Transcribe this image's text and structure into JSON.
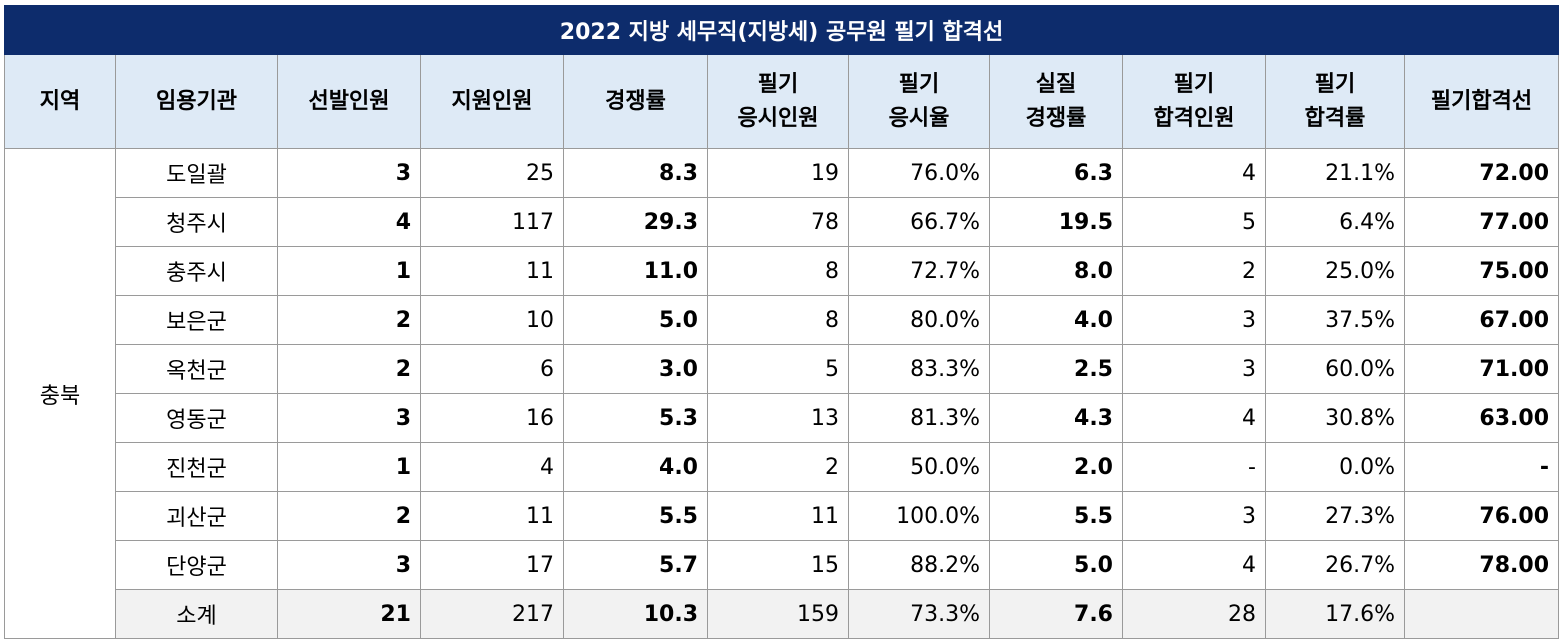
{
  "title": "2022 지방 세무직(지방세) 공무원 필기 합격선",
  "headers": [
    "지역",
    "임용기관",
    "선발인원",
    "지원인원",
    "경쟁률",
    "필기\n응시인원",
    "필기\n응시율",
    "실질\n경쟁률",
    "필기\n합격인원",
    "필기\n합격률",
    "필기합격선"
  ],
  "region": "충북",
  "rows": [
    {
      "agency": "도일괄",
      "selected": "3",
      "applicants": "25",
      "ratio": "8.3",
      "takers": "19",
      "take_rate": "76.0%",
      "real_ratio": "6.3",
      "passers": "4",
      "pass_rate": "21.1%",
      "cutoff": "72.00"
    },
    {
      "agency": "청주시",
      "selected": "4",
      "applicants": "117",
      "ratio": "29.3",
      "takers": "78",
      "take_rate": "66.7%",
      "real_ratio": "19.5",
      "passers": "5",
      "pass_rate": "6.4%",
      "cutoff": "77.00"
    },
    {
      "agency": "충주시",
      "selected": "1",
      "applicants": "11",
      "ratio": "11.0",
      "takers": "8",
      "take_rate": "72.7%",
      "real_ratio": "8.0",
      "passers": "2",
      "pass_rate": "25.0%",
      "cutoff": "75.00"
    },
    {
      "agency": "보은군",
      "selected": "2",
      "applicants": "10",
      "ratio": "5.0",
      "takers": "8",
      "take_rate": "80.0%",
      "real_ratio": "4.0",
      "passers": "3",
      "pass_rate": "37.5%",
      "cutoff": "67.00"
    },
    {
      "agency": "옥천군",
      "selected": "2",
      "applicants": "6",
      "ratio": "3.0",
      "takers": "5",
      "take_rate": "83.3%",
      "real_ratio": "2.5",
      "passers": "3",
      "pass_rate": "60.0%",
      "cutoff": "71.00"
    },
    {
      "agency": "영동군",
      "selected": "3",
      "applicants": "16",
      "ratio": "5.3",
      "takers": "13",
      "take_rate": "81.3%",
      "real_ratio": "4.3",
      "passers": "4",
      "pass_rate": "30.8%",
      "cutoff": "63.00"
    },
    {
      "agency": "진천군",
      "selected": "1",
      "applicants": "4",
      "ratio": "4.0",
      "takers": "2",
      "take_rate": "50.0%",
      "real_ratio": "2.0",
      "passers": "-",
      "pass_rate": "0.0%",
      "cutoff": "-"
    },
    {
      "agency": "괴산군",
      "selected": "2",
      "applicants": "11",
      "ratio": "5.5",
      "takers": "11",
      "take_rate": "100.0%",
      "real_ratio": "5.5",
      "passers": "3",
      "pass_rate": "27.3%",
      "cutoff": "76.00"
    },
    {
      "agency": "단양군",
      "selected": "3",
      "applicants": "17",
      "ratio": "5.7",
      "takers": "15",
      "take_rate": "88.2%",
      "real_ratio": "5.0",
      "passers": "4",
      "pass_rate": "26.7%",
      "cutoff": "78.00"
    }
  ],
  "total": {
    "agency": "소계",
    "selected": "21",
    "applicants": "217",
    "ratio": "10.3",
    "takers": "159",
    "take_rate": "73.3%",
    "real_ratio": "7.6",
    "passers": "28",
    "pass_rate": "17.6%",
    "cutoff": ""
  },
  "colors": {
    "title_bg": "#0d2c6c",
    "header_bg": "#deeaf6",
    "cutoff_text": "#1f6fb8",
    "total_bg": "#f2f2f2",
    "border": "#9a9a9a"
  }
}
